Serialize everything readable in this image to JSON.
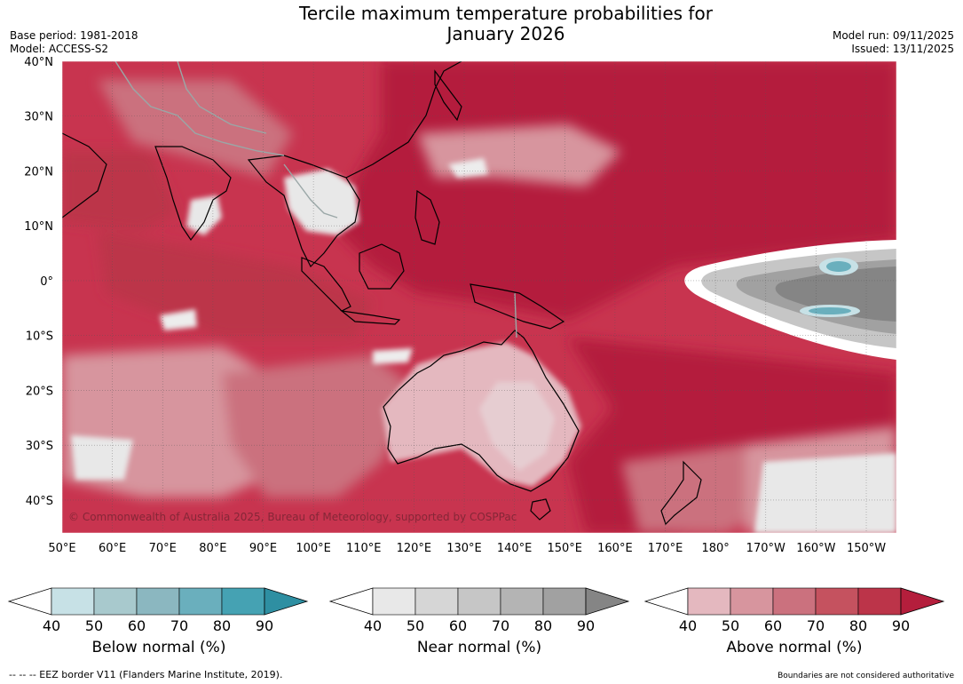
{
  "header": {
    "title_line1": "Tercile maximum temperature probabilities for",
    "title_line2": "January 2026",
    "base_period": "Base period: 1981-2018",
    "model": "Model: ACCESS-S2",
    "model_run": "Model run: 09/11/2025",
    "issued": "Issued: 13/11/2025"
  },
  "map": {
    "lat_labels": [
      "40°N",
      "30°N",
      "20°N",
      "10°N",
      "0°",
      "10°S",
      "20°S",
      "30°S",
      "40°S"
    ],
    "lon_labels": [
      "50°E",
      "60°E",
      "70°E",
      "80°E",
      "90°E",
      "100°E",
      "110°E",
      "120°E",
      "130°E",
      "140°E",
      "150°E",
      "160°E",
      "170°E",
      "180°",
      "170°W",
      "160°W",
      "150°W"
    ],
    "lat_values": [
      40,
      30,
      20,
      10,
      0,
      -10,
      -20,
      -30,
      -40
    ],
    "lon_values": [
      50,
      60,
      70,
      80,
      90,
      100,
      110,
      120,
      130,
      140,
      150,
      160,
      170,
      180,
      190,
      200,
      210
    ],
    "extent": {
      "lon_min": 50,
      "lon_max": 216,
      "lat_min": -46,
      "lat_max": 40
    },
    "copyright": "© Commonwealth of Australia 2025, Bureau of Meteorology, supported by COSPPac",
    "colors": {
      "above_dominant": "#b7213f",
      "ocean_base": "#c8344f"
    }
  },
  "legends": [
    {
      "label": "Below normal (%)",
      "ticks": [
        "40",
        "50",
        "60",
        "70",
        "80",
        "90"
      ],
      "colors": [
        "#ffffff",
        "#c7e1e6",
        "#a8c9cd",
        "#8bb7c0",
        "#6aafbd",
        "#45a2b3",
        "#2e8fa2"
      ]
    },
    {
      "label": "Near normal (%)",
      "ticks": [
        "40",
        "50",
        "60",
        "70",
        "80",
        "90"
      ],
      "colors": [
        "#ffffff",
        "#e8e8e8",
        "#d6d6d6",
        "#c6c6c6",
        "#b4b4b4",
        "#a1a1a1",
        "#858585"
      ]
    },
    {
      "label": "Above normal (%)",
      "ticks": [
        "40",
        "50",
        "60",
        "70",
        "80",
        "90"
      ],
      "colors": [
        "#ffffff",
        "#e4b8bf",
        "#d7959e",
        "#cb717e",
        "#c5525f",
        "#bc3449",
        "#b41e3c"
      ]
    }
  ],
  "footer": {
    "eez_note": "--  --  -- EEZ border V11 (Flanders Marine Institute, 2019).",
    "disclaimer": "Boundaries are not considered authoritative"
  }
}
